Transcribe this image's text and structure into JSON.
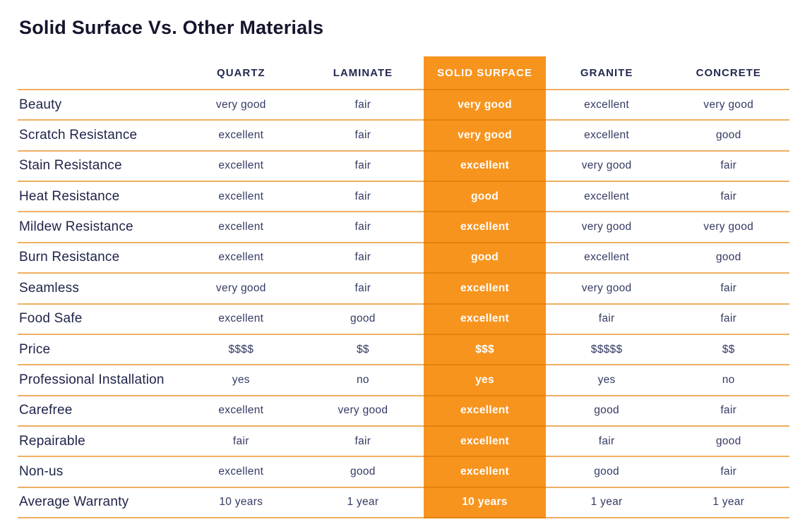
{
  "title": "Solid Surface Vs. Other Materials",
  "chart_data": {
    "type": "table",
    "columns": [
      "QUARTZ",
      "LAMINATE",
      "SOLID SURFACE",
      "GRANITE",
      "CONCRETE"
    ],
    "highlight_column": "SOLID SURFACE",
    "highlight_column_index": 2,
    "rows": [
      {
        "label": "Beauty",
        "values": [
          "very good",
          "fair",
          "very good",
          "excellent",
          "very good"
        ]
      },
      {
        "label": "Scratch Resistance",
        "values": [
          "excellent",
          "fair",
          "very good",
          "excellent",
          "good"
        ]
      },
      {
        "label": "Stain Resistance",
        "values": [
          "excellent",
          "fair",
          "excellent",
          "very good",
          "fair"
        ]
      },
      {
        "label": "Heat Resistance",
        "values": [
          "excellent",
          "fair",
          "good",
          "excellent",
          "fair"
        ]
      },
      {
        "label": "Mildew Resistance",
        "values": [
          "excellent",
          "fair",
          "excellent",
          "very good",
          "very good"
        ]
      },
      {
        "label": "Burn Resistance",
        "values": [
          "excellent",
          "fair",
          "good",
          "excellent",
          "good"
        ]
      },
      {
        "label": "Seamless",
        "values": [
          "very good",
          "fair",
          "excellent",
          "very good",
          "fair"
        ]
      },
      {
        "label": "Food Safe",
        "values": [
          "excellent",
          "good",
          "excellent",
          "fair",
          "fair"
        ]
      },
      {
        "label": "Price",
        "values": [
          "$$$$",
          "$$",
          "$$$",
          "$$$$$",
          "$$"
        ]
      },
      {
        "label": "Professional Installation",
        "values": [
          "yes",
          "no",
          "yes",
          "yes",
          "no"
        ]
      },
      {
        "label": "Carefree",
        "values": [
          "excellent",
          "very good",
          "excellent",
          "good",
          "fair"
        ]
      },
      {
        "label": "Repairable",
        "values": [
          "fair",
          "fair",
          "excellent",
          "fair",
          "good"
        ]
      },
      {
        "label": "Non-us",
        "values": [
          "excellent",
          "good",
          "excellent",
          "good",
          "fair"
        ]
      },
      {
        "label": "Average Warranty",
        "values": [
          "10 years",
          "1 year",
          "10 years",
          "1 year",
          "1 year"
        ]
      }
    ]
  },
  "colors": {
    "accent_orange": "#F7941E",
    "orange_divider": "#E5820F",
    "row_divider": "#EFAF62",
    "title_text": "#14142C",
    "header_text": "#232950",
    "label_text": "#20254A",
    "value_text": "#343B63",
    "highlight_text": "#FFFFFF"
  }
}
